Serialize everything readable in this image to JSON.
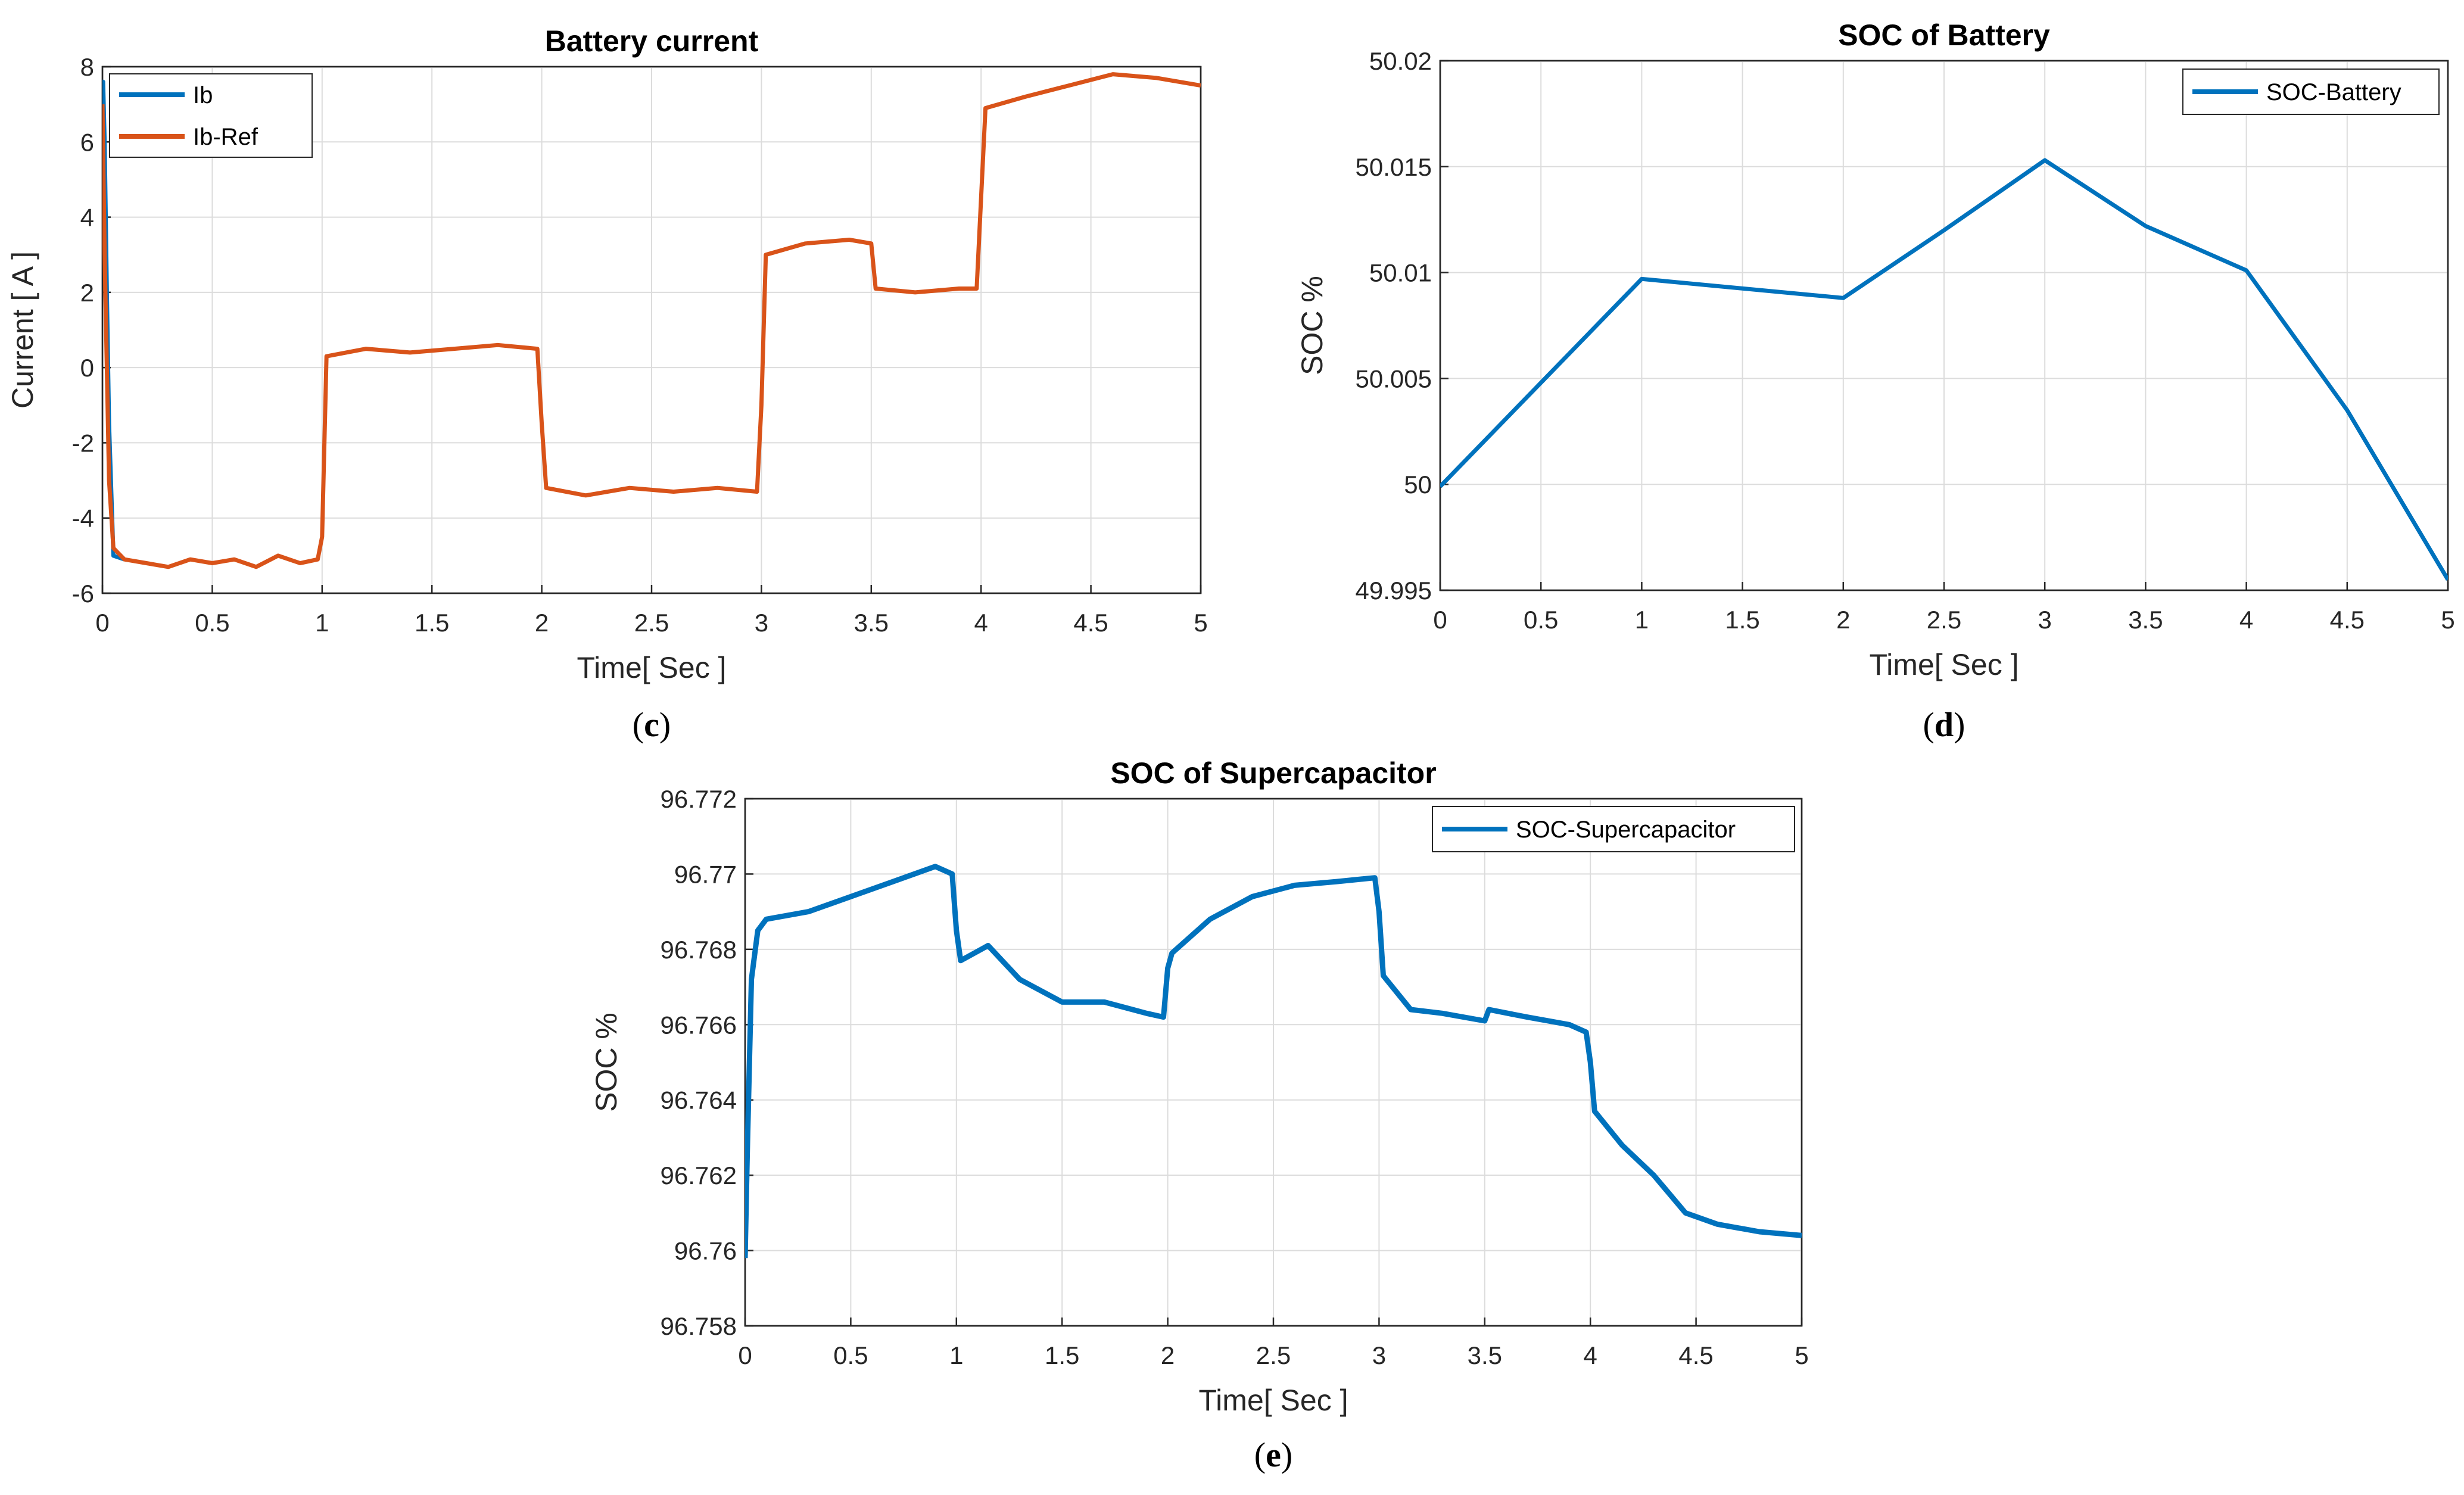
{
  "chart_data": [
    {
      "id": "c",
      "type": "line",
      "title": "Battery current",
      "xlabel": "Time[ Sec ]",
      "ylabel": "Current [ A ]",
      "xlim": [
        0,
        5
      ],
      "ylim": [
        -6,
        8
      ],
      "xticks": [
        "0",
        "0.5",
        "1",
        "1.5",
        "2",
        "2.5",
        "3",
        "3.5",
        "4",
        "4.5",
        "5"
      ],
      "yticks": [
        "-6",
        "-4",
        "-2",
        "0",
        "2",
        "4",
        "6",
        "8"
      ],
      "legend_position": "top-left",
      "caption": "c",
      "series": [
        {
          "name": "Ib",
          "color": "#0072BD",
          "x": [
            0,
            0.003,
            0.01,
            0.02,
            0.03,
            0.05,
            0.1
          ],
          "y": [
            7.6,
            7.6,
            6.0,
            2.0,
            -1.5,
            -5.0,
            -5.1
          ]
        },
        {
          "name": "Ib-Ref",
          "color": "#D95319",
          "x": [
            0,
            0.01,
            0.03,
            0.05,
            0.1,
            0.2,
            0.3,
            0.4,
            0.5,
            0.6,
            0.7,
            0.8,
            0.9,
            0.98,
            1.0,
            1.02,
            1.2,
            1.4,
            1.6,
            1.8,
            1.98,
            2.0,
            2.02,
            2.2,
            2.4,
            2.6,
            2.8,
            2.98,
            3.0,
            3.02,
            3.2,
            3.4,
            3.5,
            3.52,
            3.7,
            3.9,
            3.98,
            4.0,
            4.02,
            4.2,
            4.4,
            4.6,
            4.8,
            5.0
          ],
          "y": [
            7.0,
            3.0,
            -3.0,
            -4.8,
            -5.1,
            -5.2,
            -5.3,
            -5.1,
            -5.2,
            -5.1,
            -5.3,
            -5.0,
            -5.2,
            -5.1,
            -4.5,
            0.3,
            0.5,
            0.4,
            0.5,
            0.6,
            0.5,
            -1.5,
            -3.2,
            -3.4,
            -3.2,
            -3.3,
            -3.2,
            -3.3,
            -1.0,
            3.0,
            3.3,
            3.4,
            3.3,
            2.1,
            2.0,
            2.1,
            2.1,
            4.5,
            6.9,
            7.2,
            7.5,
            7.8,
            7.7,
            7.5
          ]
        }
      ]
    },
    {
      "id": "d",
      "type": "line",
      "title": "SOC of Battery",
      "xlabel": "Time[ Sec ]",
      "ylabel": "SOC %",
      "xlim": [
        0,
        5
      ],
      "ylim": [
        49.995,
        50.02
      ],
      "xticks": [
        "0",
        "0.5",
        "1",
        "1.5",
        "2",
        "2.5",
        "3",
        "3.5",
        "4",
        "4.5",
        "5"
      ],
      "yticks": [
        "49.995",
        "50",
        "50.005",
        "50.01",
        "50.015",
        "50.02"
      ],
      "legend_position": "top-right",
      "caption": "d",
      "series": [
        {
          "name": "SOC-Battery",
          "color": "#0072BD",
          "x": [
            0,
            1,
            2,
            2.5,
            3,
            3.5,
            4,
            4.5,
            5
          ],
          "y": [
            49.9999,
            50.0097,
            50.0088,
            50.012,
            50.0153,
            50.0122,
            50.0101,
            50.0035,
            49.9955
          ]
        }
      ]
    },
    {
      "id": "e",
      "type": "line",
      "title": "SOC of Supercapacitor",
      "xlabel": "Time[ Sec ]",
      "ylabel": "SOC %",
      "xlim": [
        0,
        5
      ],
      "ylim": [
        96.758,
        96.772
      ],
      "xticks": [
        "0",
        "0.5",
        "1",
        "1.5",
        "2",
        "2.5",
        "3",
        "3.5",
        "4",
        "4.5",
        "5"
      ],
      "yticks": [
        "96.758",
        "96.76",
        "96.762",
        "96.764",
        "96.766",
        "96.768",
        "96.77",
        "96.772"
      ],
      "legend_position": "top-right",
      "caption": "e",
      "series": [
        {
          "name": "SOC-Supercapacitor",
          "color": "#0072BD",
          "x": [
            0,
            0.01,
            0.03,
            0.06,
            0.1,
            0.3,
            0.5,
            0.7,
            0.9,
            0.98,
            1.0,
            1.02,
            1.15,
            1.3,
            1.5,
            1.7,
            1.9,
            1.98,
            2.0,
            2.02,
            2.2,
            2.4,
            2.6,
            2.8,
            2.98,
            3.0,
            3.02,
            3.15,
            3.3,
            3.5,
            3.52,
            3.7,
            3.9,
            3.98,
            4.0,
            4.02,
            4.15,
            4.3,
            4.45,
            4.6,
            4.8,
            5.0
          ],
          "y": [
            96.7598,
            96.7625,
            96.7672,
            96.7685,
            96.7688,
            96.769,
            96.7694,
            96.7698,
            96.7702,
            96.77,
            96.7685,
            96.7677,
            96.7681,
            96.7672,
            96.7666,
            96.7666,
            96.7663,
            96.7662,
            96.7675,
            96.7679,
            96.7688,
            96.7694,
            96.7697,
            96.7698,
            96.7699,
            96.769,
            96.7673,
            96.7664,
            96.7663,
            96.7661,
            96.7664,
            96.7662,
            96.766,
            96.7658,
            96.765,
            96.7637,
            96.7628,
            96.762,
            96.761,
            96.7607,
            96.7605,
            96.7604
          ]
        }
      ]
    }
  ]
}
